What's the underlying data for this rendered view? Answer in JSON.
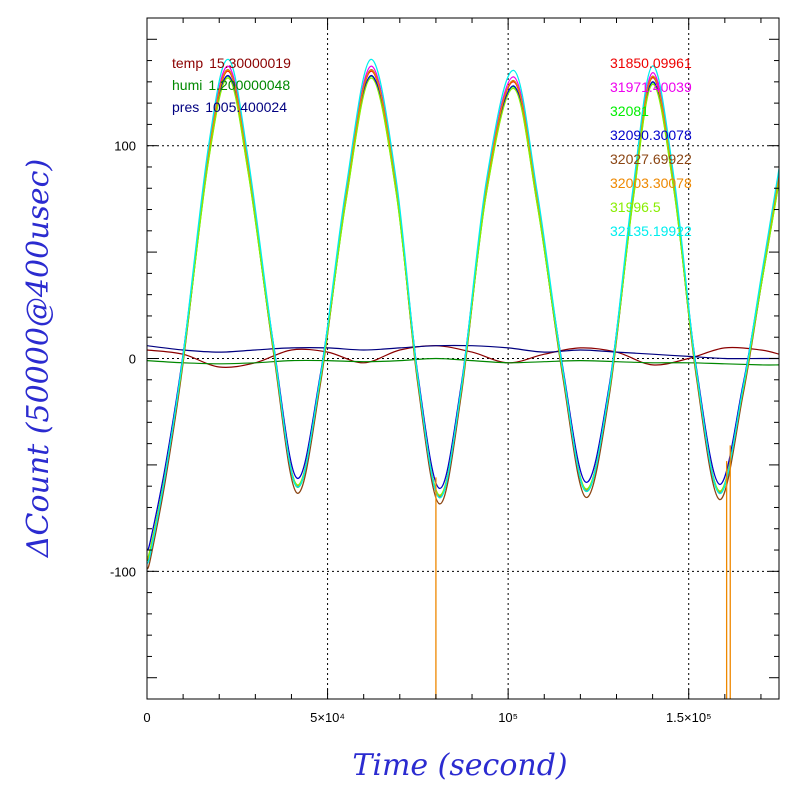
{
  "chart_data": {
    "type": "line",
    "xlabel": "Time (second)",
    "ylabel": "ΔCount (50000@400usec)",
    "xlim": [
      0,
      175000
    ],
    "ylim": [
      -160,
      160
    ],
    "grid": true,
    "x_ticks": [
      {
        "value": 0,
        "label": "0"
      },
      {
        "value": 50000,
        "label": "5×10⁴"
      },
      {
        "value": 100000,
        "label": "10⁵"
      },
      {
        "value": 150000,
        "label": "1.5×10⁵"
      }
    ],
    "y_ticks": [
      {
        "value": -100,
        "label": "-100"
      },
      {
        "value": 0,
        "label": "0"
      },
      {
        "value": 100,
        "label": "100"
      }
    ],
    "oscillation": {
      "x": [
        0,
        1000,
        5000,
        10000,
        17000,
        22500,
        28000,
        35000,
        41500,
        48000,
        55000,
        62000,
        69000,
        75000,
        81000,
        87000,
        94000,
        101500,
        108000,
        115000,
        121500,
        128000,
        134500,
        140000,
        146000,
        152000,
        158500,
        165000,
        170000,
        175000
      ],
      "y": [
        -95,
        -90,
        -55,
        0,
        95,
        135,
        90,
        5,
        -60,
        -10,
        75,
        135,
        80,
        -10,
        -65,
        -15,
        80,
        130,
        75,
        -5,
        -62,
        -15,
        75,
        132,
        80,
        -5,
        -63,
        -15,
        35,
        85
      ],
      "series": [
        {
          "name": "31850.09961",
          "color": "#ee0000",
          "scale": 1.0,
          "offset": 0
        },
        {
          "name": "31971.40039",
          "color": "#ee00ee",
          "scale": 1.01,
          "offset": 1
        },
        {
          "name": "32081",
          "color": "#00ee00",
          "scale": 0.99,
          "offset": -1
        },
        {
          "name": "32090.30078",
          "color": "#0000cc",
          "scale": 0.97,
          "offset": 2
        },
        {
          "name": "32027.69922",
          "color": "#8b4513",
          "scale": 1.02,
          "offset": -2
        },
        {
          "name": "32003.30078",
          "color": "#ee8800",
          "scale": 1.0,
          "offset": 0.5
        },
        {
          "name": "31996.5",
          "color": "#88ee00",
          "scale": 0.98,
          "offset": -0.5
        },
        {
          "name": "32135.19922",
          "color": "#00eeee",
          "scale": 1.03,
          "offset": 1.5
        }
      ],
      "spikes": [
        {
          "series": "32003.30078",
          "x": 80000,
          "y": -160
        },
        {
          "series": "32003.30078",
          "x": 160500,
          "y": -160
        },
        {
          "series": "32003.30078",
          "x": 161500,
          "y": -160
        }
      ]
    },
    "environment": [
      {
        "name": "temp",
        "value": "15.30000019",
        "color": "#8b0000",
        "x": [
          0,
          10000,
          20000,
          30000,
          40000,
          50000,
          60000,
          70000,
          80000,
          90000,
          100000,
          110000,
          120000,
          130000,
          140000,
          150000,
          160000,
          170000,
          175000
        ],
        "y": [
          4,
          2,
          -4,
          -2,
          4,
          3,
          -2,
          4,
          6,
          3,
          -2,
          2,
          5,
          3,
          -3,
          0,
          5,
          4,
          2
        ]
      },
      {
        "name": "humi",
        "value": "1.200000048",
        "color": "#008800",
        "x": [
          0,
          10000,
          20000,
          30000,
          40000,
          50000,
          60000,
          70000,
          80000,
          90000,
          100000,
          110000,
          120000,
          130000,
          140000,
          150000,
          160000,
          170000,
          175000
        ],
        "y": [
          -1,
          -2,
          -2.5,
          -2,
          -1,
          -1,
          -1.5,
          -1,
          0,
          -1,
          -2,
          -1.5,
          -1,
          -1.5,
          -2,
          -2,
          -2.5,
          -3,
          -3
        ]
      },
      {
        "name": "pres",
        "value": "1005.400024",
        "color": "#000080",
        "x": [
          0,
          10000,
          20000,
          30000,
          40000,
          50000,
          60000,
          70000,
          80000,
          90000,
          100000,
          110000,
          120000,
          130000,
          140000,
          150000,
          160000,
          170000,
          175000
        ],
        "y": [
          6,
          4,
          3,
          4,
          5,
          5,
          4,
          5,
          6,
          6,
          5,
          3,
          4,
          3,
          2,
          1,
          0,
          0,
          0
        ]
      }
    ]
  }
}
